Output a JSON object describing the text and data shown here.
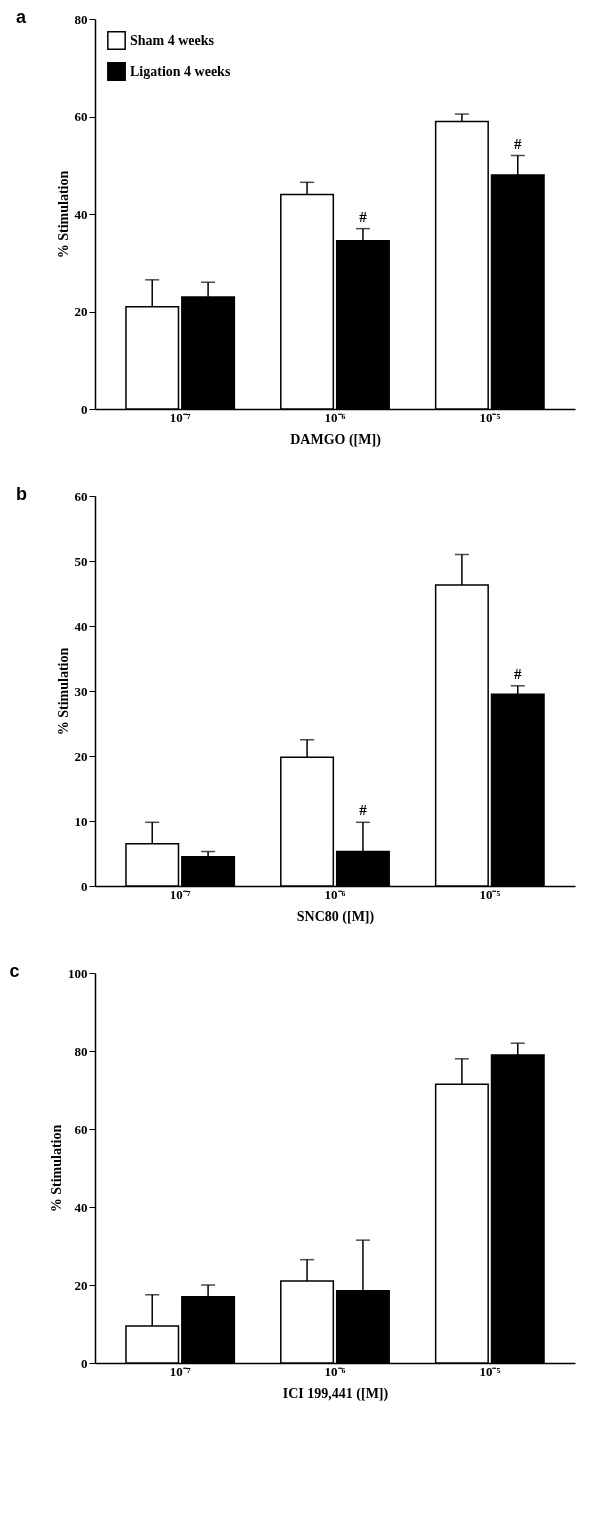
{
  "chart_data": [
    {
      "type": "bar",
      "title": "a",
      "xlabel": "DAMGO ([M])",
      "ylabel": "% Stimulation",
      "categories": [
        "10⁻⁷",
        "10⁻⁶",
        "10⁻⁵"
      ],
      "ylim": [
        0,
        80
      ],
      "yticks": [
        0,
        20,
        40,
        60,
        80
      ],
      "legend": "top left",
      "grid": false,
      "series": [
        {
          "name": "Sham 4 weeks",
          "color": "#ffffff",
          "values": [
            21,
            44,
            59
          ],
          "errors": [
            [
              21,
              26.5
            ],
            [
              44,
              46.5
            ],
            [
              59,
              60.5
            ]
          ]
        },
        {
          "name": "Ligation 4 weeks",
          "color": "#000000",
          "values": [
            23,
            34.5,
            48
          ],
          "errors": [
            [
              23,
              26
            ],
            [
              34.5,
              37
            ],
            [
              48,
              52
            ]
          ]
        }
      ],
      "annotations": [
        {
          "text": "#",
          "x": "10⁻⁶",
          "y": 37
        },
        {
          "text": "#",
          "x": "10⁻⁵",
          "y": 52
        }
      ]
    },
    {
      "type": "bar",
      "title": "b",
      "xlabel": "SNC80 ([M])",
      "ylabel": "% Stimulation",
      "categories": [
        "10⁻⁷",
        "10⁻⁶",
        "10⁻⁵"
      ],
      "ylim": [
        0,
        60
      ],
      "yticks": [
        0,
        10,
        20,
        30,
        40,
        50,
        60
      ],
      "legend": "top left",
      "grid": false,
      "series": [
        {
          "name": "Sham 4 weeks",
          "color": "#ffffff",
          "values": [
            6.5,
            19.8,
            46.3
          ],
          "errors": [
            [
              6.5,
              9.8
            ],
            [
              19.8,
              22.5
            ],
            [
              46.3,
              51
            ]
          ]
        },
        {
          "name": "Ligation 4 weeks",
          "color": "#000000",
          "values": [
            4.5,
            5.3,
            29.5
          ],
          "errors": [
            [
              4.5,
              5.3
            ],
            [
              5.3,
              9.8
            ],
            [
              29.5,
              30.8
            ]
          ]
        }
      ],
      "annotations": [
        {
          "text": "#",
          "x": "10⁻⁶",
          "y": 9.8
        },
        {
          "text": "#",
          "x": "10⁻⁵",
          "y": 30.8
        }
      ]
    },
    {
      "type": "bar",
      "title": "c",
      "xlabel": "ICI 199,441 ([M])",
      "ylabel": "% Stimulation",
      "categories": [
        "10⁻⁷",
        "10⁻⁶",
        "10⁻⁵"
      ],
      "ylim": [
        0,
        100
      ],
      "yticks": [
        0,
        20,
        40,
        60,
        80,
        100
      ],
      "legend": "top left",
      "grid": false,
      "series": [
        {
          "name": "Sham 4 weeks",
          "color": "#ffffff",
          "values": [
            9.5,
            21,
            71.5
          ],
          "errors": [
            [
              9.5,
              17.5
            ],
            [
              21,
              26.5
            ],
            [
              71.5,
              78
            ]
          ]
        },
        {
          "name": "Ligation 4 weeks",
          "color": "#000000",
          "values": [
            17,
            18.5,
            79
          ],
          "errors": [
            [
              17,
              20
            ],
            [
              18.5,
              31.5
            ],
            [
              79,
              82
            ]
          ]
        }
      ]
    }
  ]
}
